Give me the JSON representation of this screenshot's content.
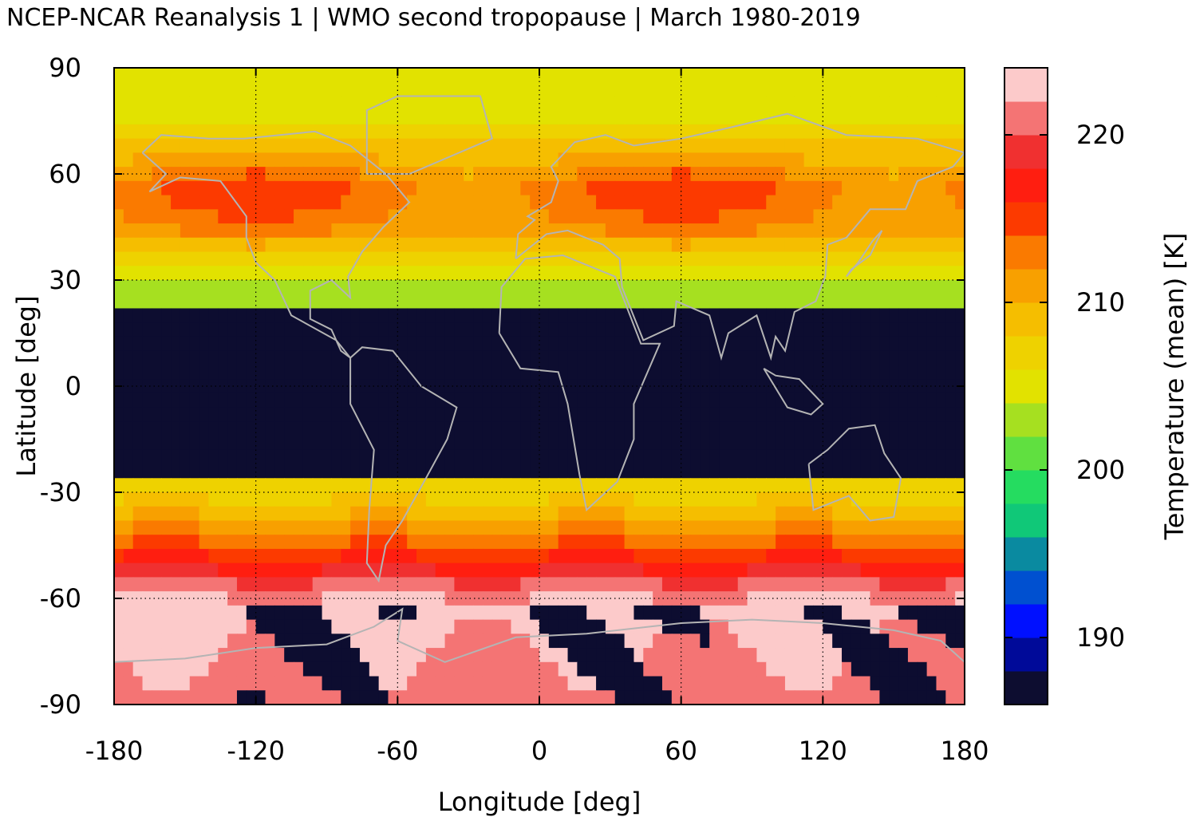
{
  "chart_data": {
    "type": "heatmap",
    "title": "NCEP-NCAR Reanalysis 1 | WMO second tropopause | March 1980-2019",
    "xlabel": "Longitude [deg]",
    "ylabel": "Latitude [deg]",
    "colorbar_label": "Temperature (mean) [K]",
    "xlim": [
      -180,
      180
    ],
    "ylim": [
      -90,
      90
    ],
    "x_ticks": [
      "-180",
      "-120",
      "-60",
      "0",
      "60",
      "120",
      "180"
    ],
    "y_ticks": [
      "-90",
      "-60",
      "-30",
      "0",
      "30",
      "60",
      "90"
    ],
    "colorbar_ticks": [
      "190",
      "200",
      "210",
      "220"
    ],
    "colorbar_range": [
      186,
      224
    ],
    "grid": true,
    "missing_color": "#0d0d30",
    "coastline_color": "#b4b4b4",
    "colorscale": [
      {
        "from": 186,
        "to": 188,
        "color": "#0d0d30"
      },
      {
        "from": 188,
        "to": 190,
        "color": "#000a99"
      },
      {
        "from": 190,
        "to": 192,
        "color": "#0010ff"
      },
      {
        "from": 192,
        "to": 194,
        "color": "#0050d0"
      },
      {
        "from": 194,
        "to": 196,
        "color": "#0a8aa0"
      },
      {
        "from": 196,
        "to": 198,
        "color": "#10c878"
      },
      {
        "from": 198,
        "to": 200,
        "color": "#25dc60"
      },
      {
        "from": 200,
        "to": 202,
        "color": "#60e040"
      },
      {
        "from": 202,
        "to": 204,
        "color": "#a6e020"
      },
      {
        "from": 204,
        "to": 206,
        "color": "#e2e200"
      },
      {
        "from": 206,
        "to": 208,
        "color": "#eed200"
      },
      {
        "from": 208,
        "to": 210,
        "color": "#f5be00"
      },
      {
        "from": 210,
        "to": 212,
        "color": "#f8a000"
      },
      {
        "from": 212,
        "to": 214,
        "color": "#fa7a00"
      },
      {
        "from": 214,
        "to": 216,
        "color": "#fc3a00"
      },
      {
        "from": 216,
        "to": 218,
        "color": "#ff1e10"
      },
      {
        "from": 218,
        "to": 220,
        "color": "#f03030"
      },
      {
        "from": 220,
        "to": 222,
        "color": "#f47474"
      },
      {
        "from": 222,
        "to": 224,
        "color": "#fccaca"
      }
    ],
    "valid_band": {
      "valid_range": {
        "north": 21,
        "south": -25
      }
    },
    "zonal_profile": [
      {
        "lat": 90,
        "K": 205
      },
      {
        "lat": 75,
        "K": 206
      },
      {
        "lat": 65,
        "K": 210
      },
      {
        "lat": 55,
        "K": 214
      },
      {
        "lat": 45,
        "K": 212
      },
      {
        "lat": 35,
        "K": 207
      },
      {
        "lat": 25,
        "K": 202
      },
      {
        "lat": -25,
        "K": 205
      },
      {
        "lat": -35,
        "K": 209
      },
      {
        "lat": -45,
        "K": 214
      },
      {
        "lat": -52,
        "K": 218
      },
      {
        "lat": -57,
        "K": 221
      },
      {
        "lat": -62,
        "K": 223
      },
      {
        "lat": -75,
        "K": 222
      },
      {
        "lat": -90,
        "K": 221
      }
    ]
  }
}
